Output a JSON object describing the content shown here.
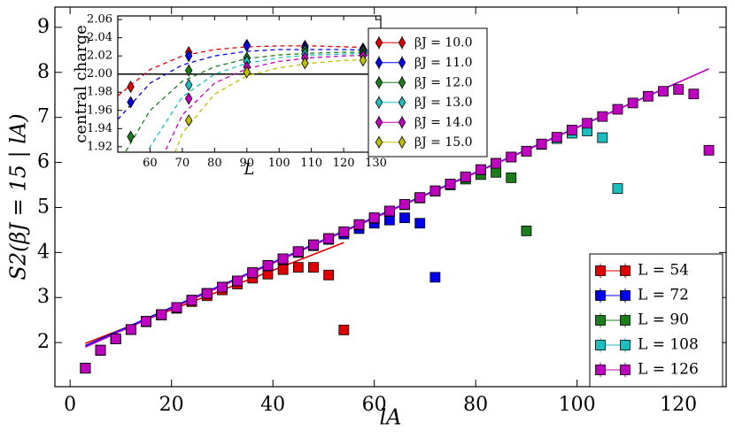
{
  "chart_data": [
    {
      "type": "scatter",
      "xlabel": "lA",
      "ylabel": "S2(βJ = 15 | lA)",
      "xlim": [
        -3,
        129.4
      ],
      "ylim": [
        1.02,
        9.45
      ],
      "xticks": [
        0,
        20,
        40,
        60,
        80,
        100,
        120
      ],
      "yticks": [
        2,
        3,
        4,
        5,
        6,
        7,
        8,
        9
      ],
      "legend": "lower right",
      "series": [
        {
          "name": "L = 54",
          "color": "#e00000",
          "x": [
            3,
            6,
            9,
            12,
            15,
            18,
            21,
            24,
            27,
            30,
            33,
            36,
            39,
            42,
            45,
            48,
            51,
            54
          ],
          "values": [
            1.43,
            1.83,
            2.08,
            2.29,
            2.46,
            2.61,
            2.76,
            2.91,
            3.04,
            3.17,
            3.3,
            3.43,
            3.52,
            3.62,
            3.67,
            3.67,
            3.5,
            2.28
          ]
        },
        {
          "name": "L = 72",
          "color": "#0000ee",
          "x": [
            3,
            6,
            9,
            12,
            15,
            18,
            21,
            24,
            27,
            30,
            33,
            36,
            39,
            42,
            45,
            48,
            51,
            54,
            57,
            60,
            63,
            66,
            69,
            72
          ],
          "values": [
            1.43,
            1.83,
            2.08,
            2.29,
            2.47,
            2.62,
            2.78,
            2.94,
            3.09,
            3.23,
            3.37,
            3.55,
            3.7,
            3.85,
            4.0,
            4.15,
            4.29,
            4.41,
            4.53,
            4.65,
            4.72,
            4.77,
            4.65,
            3.45
          ]
        },
        {
          "name": "L = 90",
          "color": "#1a7f1a",
          "x": [
            3,
            6,
            9,
            12,
            15,
            18,
            21,
            24,
            27,
            30,
            33,
            36,
            39,
            42,
            45,
            48,
            51,
            54,
            57,
            60,
            63,
            66,
            69,
            72,
            75,
            78,
            81,
            84,
            87,
            90
          ],
          "values": [
            1.43,
            1.83,
            2.08,
            2.29,
            2.47,
            2.62,
            2.78,
            2.94,
            3.09,
            3.23,
            3.37,
            3.55,
            3.71,
            3.86,
            4.02,
            4.17,
            4.31,
            4.46,
            4.61,
            4.76,
            4.91,
            5.06,
            5.21,
            5.36,
            5.5,
            5.63,
            5.73,
            5.78,
            5.66,
            4.48
          ]
        },
        {
          "name": "L = 108",
          "color": "#1bbfbf",
          "x": [
            3,
            6,
            9,
            12,
            15,
            18,
            21,
            24,
            27,
            30,
            33,
            36,
            39,
            42,
            45,
            48,
            51,
            54,
            57,
            60,
            63,
            66,
            69,
            72,
            75,
            78,
            81,
            84,
            87,
            90,
            93,
            96,
            99,
            102,
            105,
            108
          ],
          "values": [
            1.43,
            1.83,
            2.08,
            2.29,
            2.47,
            2.62,
            2.78,
            2.94,
            3.09,
            3.23,
            3.37,
            3.55,
            3.71,
            3.86,
            4.02,
            4.17,
            4.31,
            4.46,
            4.62,
            4.77,
            4.92,
            5.07,
            5.22,
            5.37,
            5.52,
            5.68,
            5.84,
            5.98,
            6.12,
            6.25,
            6.4,
            6.53,
            6.65,
            6.7,
            6.55,
            5.42
          ]
        },
        {
          "name": "L = 126",
          "color": "#bf00bf",
          "x": [
            3,
            6,
            9,
            12,
            15,
            18,
            21,
            24,
            27,
            30,
            33,
            36,
            39,
            42,
            45,
            48,
            51,
            54,
            57,
            60,
            63,
            66,
            69,
            72,
            75,
            78,
            81,
            84,
            87,
            90,
            93,
            96,
            99,
            102,
            105,
            108,
            111,
            114,
            117,
            120,
            123,
            126
          ],
          "values": [
            1.43,
            1.83,
            2.08,
            2.29,
            2.47,
            2.62,
            2.78,
            2.94,
            3.09,
            3.23,
            3.37,
            3.55,
            3.71,
            3.86,
            4.02,
            4.17,
            4.31,
            4.46,
            4.62,
            4.77,
            4.92,
            5.07,
            5.22,
            5.37,
            5.52,
            5.68,
            5.84,
            5.98,
            6.12,
            6.25,
            6.41,
            6.56,
            6.72,
            6.87,
            7.02,
            7.18,
            7.32,
            7.47,
            7.58,
            7.62,
            7.52,
            6.27
          ]
        }
      ],
      "fit_lines": [
        {
          "color": "#e00000",
          "x": [
            3,
            54
          ],
          "values": [
            1.98,
            4.22
          ]
        },
        {
          "color": "#0000ee",
          "x": [
            3,
            120
          ],
          "values": [
            1.93,
            7.78
          ]
        },
        {
          "color": "#bf00bf",
          "x": [
            3,
            126
          ],
          "values": [
            1.9,
            8.08
          ]
        }
      ]
    },
    {
      "type": "scatter",
      "xlabel": "L",
      "ylabel": "central charge",
      "xlim": [
        50,
        131.5
      ],
      "ylim": [
        1.914,
        2.064
      ],
      "xticks": [
        60,
        70,
        80,
        90,
        100,
        110,
        120,
        130
      ],
      "yticks": [
        1.92,
        1.94,
        1.96,
        1.98,
        {
          "value": 2,
          "label": "2.00"
        },
        2.02,
        2.04,
        2.06
      ],
      "reference_line": 2,
      "legend": "outside right",
      "series": [
        {
          "name": "βJ = 10.0",
          "color": "#e00000",
          "x": [
            54,
            72,
            90,
            108,
            126
          ],
          "values": [
            1.986,
            2.024,
            2.032,
            2.031,
            2.028
          ],
          "fit_x": [
            50,
            60,
            70,
            80,
            90,
            100,
            110,
            120,
            130
          ],
          "fit_values": [
            1.976,
            2.005,
            2.02,
            2.027,
            2.03,
            2.031,
            2.031,
            2.03,
            2.029
          ]
        },
        {
          "name": "βJ = 11.0",
          "color": "#0000ee",
          "x": [
            54,
            72,
            90,
            108,
            126
          ],
          "values": [
            1.969,
            2.02,
            2.031,
            2.029,
            2.027
          ],
          "fit_x": [
            50,
            60,
            70,
            80,
            90,
            100,
            110,
            120,
            130
          ],
          "fit_values": [
            1.95,
            1.99,
            2.01,
            2.02,
            2.025,
            2.027,
            2.027,
            2.027,
            2.026
          ]
        },
        {
          "name": "βJ = 12.0",
          "color": "#1a7f1a",
          "x": [
            54,
            72,
            90,
            108,
            126
          ],
          "values": [
            1.931,
            2.004,
            2.018,
            2.026,
            2.025
          ],
          "fit_x": [
            50,
            60,
            70,
            80,
            90,
            100,
            110,
            120,
            130
          ],
          "fit_values": [
            1.9,
            1.96,
            1.992,
            2.008,
            2.017,
            2.021,
            2.023,
            2.024,
            2.024
          ]
        },
        {
          "name": "βJ = 13.0",
          "color": "#1bbfbf",
          "x": [
            72,
            90,
            108,
            126
          ],
          "values": [
            1.988,
            2.014,
            2.022,
            2.022
          ],
          "fit_x": [
            50,
            60,
            70,
            80,
            90,
            100,
            110,
            120,
            130
          ],
          "fit_values": [
            1.8,
            1.92,
            1.975,
            2.0,
            2.012,
            2.018,
            2.021,
            2.022,
            2.023
          ]
        },
        {
          "name": "βJ = 14.0",
          "color": "#bf00bf",
          "x": [
            72,
            90,
            108,
            126
          ],
          "values": [
            1.973,
            2.008,
            2.018,
            2.02
          ],
          "fit_x": [
            50,
            60,
            70,
            80,
            90,
            100,
            110,
            120,
            130
          ],
          "fit_values": [
            1.75,
            1.88,
            1.955,
            1.99,
            2.006,
            2.014,
            2.018,
            2.02,
            2.021
          ]
        },
        {
          "name": "βJ = 15.0",
          "color": "#bfbf00",
          "x": [
            72,
            90,
            108,
            126
          ],
          "values": [
            1.949,
            2.002,
            2.012,
            2.015
          ],
          "fit_x": [
            50,
            60,
            70,
            80,
            90,
            100,
            110,
            120,
            130
          ],
          "fit_values": [
            1.65,
            1.84,
            1.935,
            1.978,
            1.998,
            2.007,
            2.012,
            2.015,
            2.016
          ]
        }
      ]
    }
  ]
}
